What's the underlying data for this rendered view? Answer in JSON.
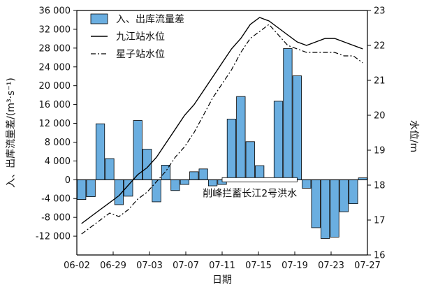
{
  "chart_data": {
    "type": "bar",
    "title": "",
    "xlabel": "日期",
    "ylabel_left": "入、出库流量差/(m³·s⁻¹)",
    "ylabel_right": "水位/m",
    "ylim_left": [
      -16000,
      36000
    ],
    "ylim_right": [
      16,
      23
    ],
    "yticks_left": [
      -12000,
      -8000,
      -4000,
      0,
      4000,
      8000,
      12000,
      16000,
      20000,
      24000,
      28000,
      32000,
      36000
    ],
    "yticks_right": [
      16,
      17,
      18,
      19,
      20,
      21,
      22,
      23
    ],
    "ytick_labels_left": [
      "-12 000",
      "-8 000",
      "-4 000",
      "0",
      "4 000",
      "8 000",
      "12 000",
      "16 000",
      "20 000",
      "24 000",
      "28 000",
      "32 000",
      "36 000"
    ],
    "ytick_labels_right": [
      "16",
      "17",
      "18",
      "19",
      "20",
      "21",
      "22",
      "23"
    ],
    "xtick_labels": [
      "06-02",
      "06-29",
      "07-03",
      "07-07",
      "07-11",
      "07-15",
      "07-19",
      "07-23",
      "07-27"
    ],
    "grid": false,
    "legend_position": "top-center",
    "bar_series": {
      "name": "入、出库流量差",
      "color": "#6aaee0",
      "values": [
        -4200,
        -3600,
        11900,
        4500,
        -5300,
        -3500,
        12600,
        6500,
        -4700,
        3100,
        -2300,
        -1000,
        1700,
        2300,
        -1300,
        -1000,
        12900,
        17700,
        8100,
        3000,
        0,
        16700,
        27900,
        22100,
        -1800,
        -10200,
        -12500,
        -12200,
        -6800,
        -5100,
        400
      ]
    },
    "line_series": [
      {
        "name": "九江站水位",
        "style": "solid",
        "axis": "right",
        "x": [
          0.5,
          1.5,
          2.5,
          3.5,
          4.5,
          5.5,
          6.5,
          7.5,
          8.5,
          9.5,
          10.5,
          11.5,
          12.5,
          13.5,
          14.5,
          15.5,
          16.5,
          17.5,
          18.5,
          19.5,
          20.5,
          21.5,
          22.5,
          23.5,
          24.5,
          25.5,
          26.5,
          27.5,
          28.5,
          29.5,
          30.5
        ],
        "values": [
          16.9,
          17.1,
          17.3,
          17.5,
          17.7,
          18.0,
          18.3,
          18.5,
          18.8,
          19.2,
          19.6,
          20.0,
          20.3,
          20.7,
          21.1,
          21.5,
          21.9,
          22.2,
          22.6,
          22.8,
          22.7,
          22.5,
          22.3,
          22.1,
          22.0,
          22.1,
          22.2,
          22.2,
          22.1,
          22.0,
          21.9
        ]
      },
      {
        "name": "星子站水位",
        "style": "dashdot",
        "axis": "right",
        "x": [
          0.5,
          1.5,
          2.5,
          3.5,
          4.5,
          5.5,
          6.5,
          7.5,
          8.5,
          9.5,
          10.5,
          11.5,
          12.5,
          13.5,
          14.5,
          15.5,
          16.5,
          17.5,
          18.5,
          19.5,
          20.5,
          21.5,
          22.5,
          23.5,
          24.5,
          25.5,
          26.5,
          27.5,
          28.5,
          29.5,
          30.5
        ],
        "values": [
          16.6,
          16.8,
          17.0,
          17.2,
          17.1,
          17.3,
          17.6,
          17.8,
          18.1,
          18.4,
          18.8,
          19.1,
          19.5,
          20.0,
          20.5,
          20.9,
          21.3,
          21.8,
          22.2,
          22.4,
          22.6,
          22.3,
          22.0,
          21.9,
          21.8,
          21.8,
          21.8,
          21.8,
          21.7,
          21.7,
          21.5
        ]
      }
    ],
    "annotation": {
      "text": "削峰拦蓄长江2号洪水",
      "x_start": 15.5,
      "x_end": 23.5
    }
  }
}
